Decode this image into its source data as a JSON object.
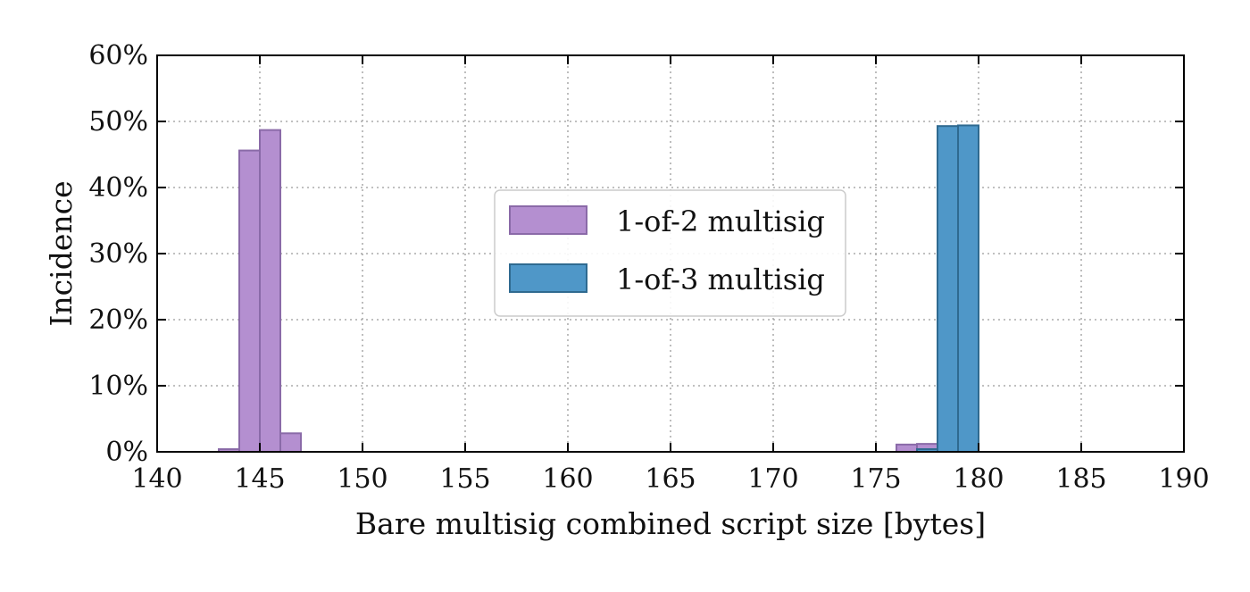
{
  "chart_data": {
    "type": "bar",
    "title": "",
    "xlabel": "Bare multisig combined script size [bytes]",
    "ylabel": "Incidence",
    "xlim": [
      140,
      190
    ],
    "ylim": [
      0,
      60
    ],
    "xticks": [
      140,
      145,
      150,
      155,
      160,
      165,
      170,
      175,
      180,
      185,
      190
    ],
    "yticks": [
      {
        "value": 0,
        "label": "0%"
      },
      {
        "value": 10,
        "label": "10%"
      },
      {
        "value": 20,
        "label": "20%"
      },
      {
        "value": 30,
        "label": "30%"
      },
      {
        "value": 40,
        "label": "40%"
      },
      {
        "value": 50,
        "label": "50%"
      },
      {
        "value": 60,
        "label": "60%"
      }
    ],
    "bin_width": 1,
    "grid": true,
    "legend_position": "center",
    "series": [
      {
        "name": "1-of-2 multisig",
        "color": "#b48fd0",
        "edge_color": "#8a6aa8",
        "bins": [
          {
            "x": 143,
            "value": 0.4
          },
          {
            "x": 144,
            "value": 45.6
          },
          {
            "x": 145,
            "value": 48.7
          },
          {
            "x": 146,
            "value": 2.8
          },
          {
            "x": 176,
            "value": 1.1
          },
          {
            "x": 177,
            "value": 1.2
          }
        ]
      },
      {
        "name": "1-of-3 multisig",
        "color": "#4f97c8",
        "edge_color": "#2f6a90",
        "bins": [
          {
            "x": 177,
            "value": 0.4
          },
          {
            "x": 178,
            "value": 49.3
          },
          {
            "x": 179,
            "value": 49.4
          }
        ]
      }
    ]
  }
}
